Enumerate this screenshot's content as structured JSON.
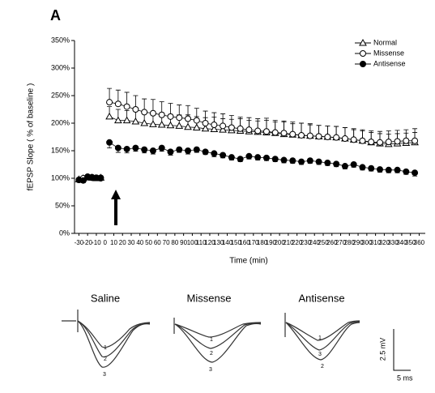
{
  "chart_data": {
    "type": "line",
    "panel_label": "A",
    "y_label": "fEPSP Slope ( % of baseline )",
    "x_label": "Time (min)",
    "xlim": [
      -35,
      367
    ],
    "ylim": [
      0,
      350
    ],
    "xticks": [
      -30,
      -20,
      -10,
      0,
      10,
      20,
      30,
      40,
      50,
      60,
      70,
      80,
      90,
      100,
      110,
      120,
      130,
      140,
      150,
      160,
      170,
      180,
      190,
      200,
      210,
      220,
      230,
      240,
      250,
      260,
      270,
      280,
      290,
      300,
      310,
      320,
      330,
      340,
      350,
      360
    ],
    "yticks": [
      {
        "value": 0,
        "label": "0%"
      },
      {
        "value": 50,
        "label": "50%"
      },
      {
        "value": 100,
        "label": "100%"
      },
      {
        "value": 150,
        "label": "150%"
      },
      {
        "value": 200,
        "label": "200%"
      },
      {
        "value": 250,
        "label": "250%"
      },
      {
        "value": 300,
        "label": "300%"
      },
      {
        "value": 350,
        "label": "350%"
      }
    ],
    "legend": "top-right",
    "x": [
      -30,
      -25,
      -20,
      -15,
      -10,
      -5,
      0,
      5,
      15,
      25,
      35,
      45,
      55,
      65,
      75,
      85,
      95,
      105,
      115,
      125,
      135,
      145,
      155,
      165,
      175,
      185,
      195,
      205,
      215,
      225,
      235,
      245,
      255,
      265,
      275,
      285,
      295,
      305,
      315,
      325,
      335,
      345,
      355
    ],
    "series": [
      {
        "name": "Normal",
        "color": "#000000",
        "marker": "triangle-open",
        "error_direction": "up",
        "values": [
          98,
          100,
          102,
          101,
          100,
          101,
          null,
          212,
          205,
          205,
          203,
          200,
          198,
          197,
          196,
          195,
          193,
          192,
          190,
          189,
          188,
          187,
          186,
          185,
          184,
          183,
          182,
          180,
          179,
          178,
          177,
          176,
          175,
          174,
          172,
          170,
          168,
          165,
          163,
          162,
          163,
          164,
          165
        ],
        "errors": [
          3,
          3,
          3,
          3,
          3,
          3,
          null,
          18,
          20,
          18,
          20,
          22,
          20,
          22,
          20,
          20,
          22,
          20,
          20,
          22,
          20,
          20,
          22,
          20,
          20,
          22,
          20,
          22,
          20,
          22,
          22,
          20,
          20,
          20,
          20,
          18,
          18,
          18,
          18,
          18,
          18,
          18,
          18
        ]
      },
      {
        "name": "Missense",
        "color": "#000000",
        "marker": "circle-open",
        "error_direction": "up",
        "values": [
          97,
          100,
          102,
          101,
          101,
          100,
          null,
          238,
          235,
          230,
          225,
          220,
          218,
          215,
          212,
          210,
          208,
          205,
          200,
          197,
          195,
          192,
          190,
          188,
          186,
          185,
          183,
          182,
          180,
          178,
          177,
          176,
          175,
          174,
          172,
          170,
          168,
          166,
          165,
          166,
          167,
          168,
          168
        ],
        "errors": [
          3,
          3,
          3,
          3,
          3,
          3,
          null,
          25,
          25,
          26,
          25,
          24,
          25,
          24,
          24,
          23,
          24,
          22,
          22,
          22,
          22,
          22,
          21,
          22,
          22,
          24,
          22,
          22,
          22,
          22,
          20,
          20,
          20,
          20,
          20,
          20,
          20,
          20,
          20,
          20,
          20,
          20,
          22
        ]
      },
      {
        "name": "Antisense",
        "color": "#000000",
        "marker": "circle-filled",
        "error_direction": "down",
        "values": [
          97,
          96,
          103,
          102,
          101,
          101,
          null,
          165,
          155,
          153,
          155,
          152,
          150,
          155,
          148,
          152,
          150,
          152,
          148,
          145,
          142,
          138,
          135,
          140,
          138,
          137,
          135,
          133,
          132,
          130,
          132,
          130,
          128,
          126,
          122,
          125,
          120,
          118,
          116,
          115,
          115,
          112,
          110
        ],
        "errors": [
          4,
          4,
          4,
          4,
          4,
          4,
          null,
          10,
          8,
          7,
          6,
          6,
          6,
          6,
          6,
          5,
          6,
          5,
          5,
          6,
          5,
          5,
          5,
          5,
          5,
          5,
          5,
          5,
          5,
          5,
          5,
          5,
          5,
          5,
          5,
          5,
          5,
          5,
          5,
          5,
          5,
          5,
          6
        ]
      }
    ]
  },
  "traces": {
    "panels": [
      {
        "title": "Saline",
        "labels": [
          "1",
          "2",
          "3"
        ]
      },
      {
        "title": "Missense",
        "labels": [
          "1",
          "2",
          "3"
        ]
      },
      {
        "title": "Antisense",
        "labels": [
          "1",
          "3",
          "2"
        ]
      }
    ],
    "scale_y": "2.5 mV",
    "scale_x": "5 ms"
  }
}
